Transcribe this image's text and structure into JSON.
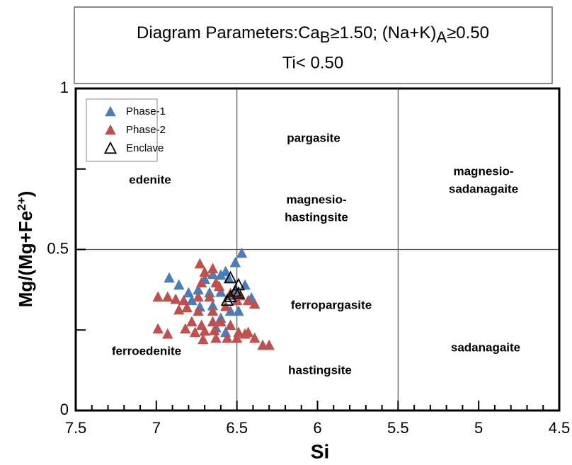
{
  "chart_data": {
    "type": "scatter",
    "title": [
      {
        "text": "Diagram Parameters:Ca"
      },
      {
        "text": "B",
        "sub": true
      },
      {
        "text": "≥1.50; (Na+K)"
      },
      {
        "text": "A",
        "sub": true
      },
      {
        "text": "≥0.50"
      }
    ],
    "subtitle": "Ti< 0.50",
    "xlabel": "Si",
    "ylabel": [
      {
        "text": "Mg/(Mg+Fe"
      },
      {
        "text": "2+",
        "sup": true
      },
      {
        "text": ")"
      }
    ],
    "xlim": [
      7.5,
      4.5
    ],
    "ylim": [
      0,
      1
    ],
    "xticks": [
      7.5,
      7,
      6.5,
      6,
      5.5,
      5,
      4.5
    ],
    "yticks": [
      0,
      0.5,
      1
    ],
    "xminorticks": [
      7.4,
      7.3,
      7.2,
      7.1,
      6.9,
      6.8,
      6.7,
      6.6,
      6.4,
      6.3,
      6.2,
      6.1,
      5.9,
      5.8,
      5.7,
      5.6,
      5.4,
      5.3,
      5.2,
      5.1,
      4.9,
      4.8,
      4.7,
      4.6
    ],
    "yminorticks": [
      0.25,
      0.75
    ],
    "boundaries": {
      "x": [
        6.5,
        5.5
      ],
      "y": [
        0.5
      ]
    },
    "fields": [
      [
        "edenite"
      ],
      [
        "pargasite"
      ],
      [
        "magnesio-",
        "hastingsite"
      ],
      [
        "magnesio-",
        "sadanagaite"
      ],
      [
        "ferropargasite"
      ],
      [
        "ferroedenite"
      ],
      [
        "hastingsite"
      ],
      [
        "sadanagaite"
      ]
    ],
    "legend": "upper left",
    "series": [
      {
        "name": "Phase-1",
        "color": "#4a7ebb",
        "filled": true,
        "x": [
          6.92,
          6.86,
          6.47,
          6.51,
          6.57,
          6.6,
          6.65,
          6.55,
          6.45,
          6.41,
          6.7,
          6.74,
          6.8,
          6.78,
          6.73,
          6.65,
          6.6,
          6.54,
          6.49,
          6.51,
          6.67,
          6.6,
          6.53,
          6.63,
          6.57
        ],
        "values": [
          0.411,
          0.389,
          0.488,
          0.459,
          0.431,
          0.42,
          0.422,
          0.409,
          0.389,
          0.349,
          0.407,
          0.374,
          0.365,
          0.341,
          0.321,
          0.325,
          0.286,
          0.308,
          0.308,
          0.374,
          0.365,
          0.367,
          0.356,
          0.257,
          0.242
        ]
      },
      {
        "name": "Phase-2",
        "color": "#c0504d",
        "filled": true,
        "x": [
          6.73,
          6.7,
          6.65,
          6.72,
          6.63,
          6.61,
          6.67,
          6.74,
          6.83,
          6.88,
          6.93,
          6.99,
          6.86,
          6.81,
          6.74,
          6.65,
          6.57,
          6.5,
          6.43,
          6.39,
          6.78,
          6.72,
          6.65,
          6.6,
          6.54,
          6.49,
          6.43,
          6.99,
          6.93,
          6.82,
          6.76,
          6.7,
          6.64,
          6.56,
          6.5,
          6.45,
          6.39,
          6.34,
          6.3,
          6.71,
          6.63,
          6.54,
          6.48
        ],
        "values": [
          0.455,
          0.429,
          0.44,
          0.396,
          0.396,
          0.385,
          0.352,
          0.352,
          0.341,
          0.345,
          0.352,
          0.352,
          0.312,
          0.319,
          0.308,
          0.308,
          0.323,
          0.341,
          0.341,
          0.33,
          0.275,
          0.264,
          0.275,
          0.275,
          0.264,
          0.242,
          0.242,
          0.253,
          0.237,
          0.253,
          0.242,
          0.246,
          0.248,
          0.224,
          0.224,
          0.237,
          0.224,
          0.202,
          0.202,
          0.22,
          0.224,
          0.363,
          0.356
        ]
      },
      {
        "name": "Enclave",
        "color": "#000000",
        "filled": false,
        "x": [
          6.54,
          6.49,
          6.51,
          6.49,
          6.56,
          6.54
        ],
        "values": [
          0.411,
          0.389,
          0.369,
          0.363,
          0.341,
          0.352
        ]
      }
    ]
  }
}
